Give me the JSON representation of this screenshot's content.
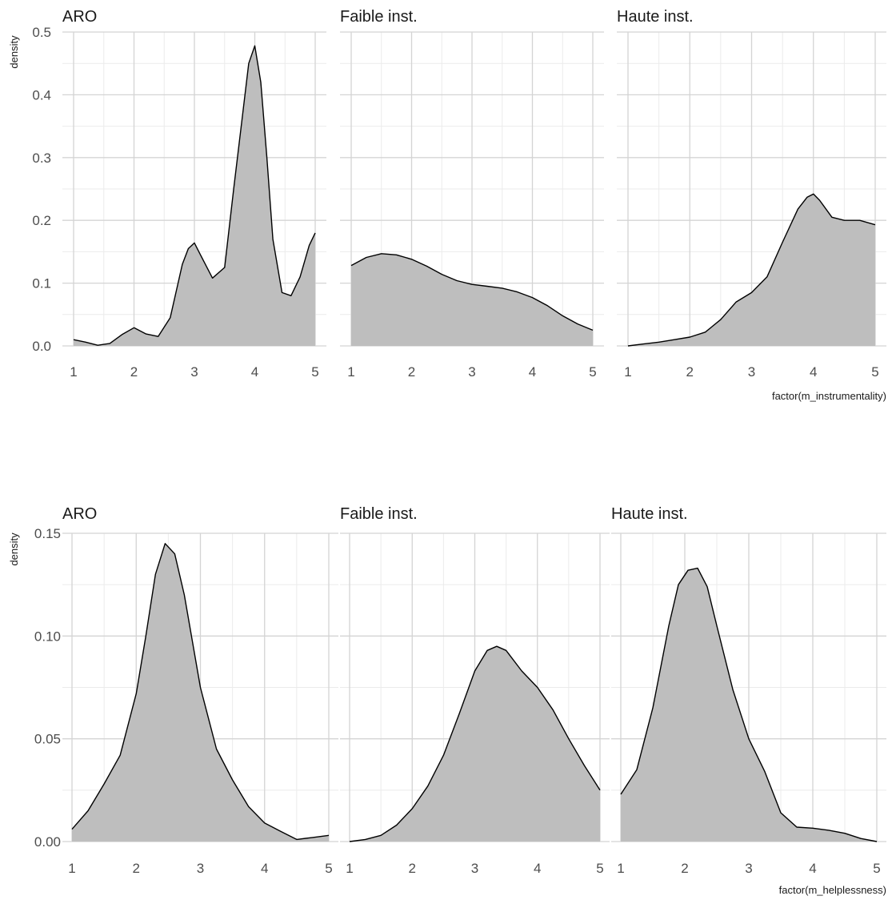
{
  "chart_data": [
    {
      "type": "area",
      "ylabel": "density",
      "xlabel": "factor(m_instrumentality)",
      "xlim": [
        1,
        5
      ],
      "ylim": [
        0,
        0.5
      ],
      "xticks": [
        "1",
        "2",
        "3",
        "4",
        "5"
      ],
      "yticks": [
        "0.0",
        "0.1",
        "0.2",
        "0.3",
        "0.4",
        "0.5"
      ],
      "fill_color": "#bebebe",
      "line_color": "#000000",
      "grid": true,
      "panels": [
        {
          "title": "ARO",
          "x": [
            1.0,
            1.2,
            1.4,
            1.6,
            1.8,
            2.0,
            2.2,
            2.4,
            2.6,
            2.8,
            2.9,
            3.0,
            3.1,
            3.3,
            3.5,
            3.65,
            3.8,
            3.9,
            4.0,
            4.1,
            4.2,
            4.3,
            4.45,
            4.6,
            4.75,
            4.9,
            5.0
          ],
          "y": [
            0.01,
            0.006,
            0.001,
            0.004,
            0.018,
            0.029,
            0.019,
            0.015,
            0.045,
            0.13,
            0.155,
            0.164,
            0.145,
            0.108,
            0.125,
            0.25,
            0.37,
            0.45,
            0.478,
            0.42,
            0.3,
            0.17,
            0.085,
            0.08,
            0.11,
            0.16,
            0.18
          ]
        },
        {
          "title": "Faible inst.",
          "x": [
            1.0,
            1.25,
            1.5,
            1.75,
            2.0,
            2.25,
            2.5,
            2.75,
            3.0,
            3.25,
            3.5,
            3.75,
            4.0,
            4.25,
            4.5,
            4.75,
            5.0
          ],
          "y": [
            0.128,
            0.141,
            0.147,
            0.145,
            0.138,
            0.127,
            0.114,
            0.104,
            0.098,
            0.095,
            0.092,
            0.086,
            0.077,
            0.064,
            0.048,
            0.035,
            0.025
          ]
        },
        {
          "title": "Haute inst.",
          "x": [
            1.0,
            1.25,
            1.5,
            1.75,
            2.0,
            2.25,
            2.5,
            2.75,
            3.0,
            3.25,
            3.5,
            3.75,
            3.9,
            4.0,
            4.1,
            4.3,
            4.5,
            4.75,
            5.0
          ],
          "y": [
            0.0,
            0.003,
            0.006,
            0.01,
            0.014,
            0.022,
            0.042,
            0.07,
            0.085,
            0.11,
            0.165,
            0.218,
            0.237,
            0.242,
            0.232,
            0.205,
            0.2,
            0.2,
            0.193
          ]
        }
      ]
    },
    {
      "type": "area",
      "ylabel": "density",
      "xlabel": "factor(m_helplessness)",
      "xlim": [
        1,
        5
      ],
      "ylim": [
        0,
        0.15
      ],
      "xticks": [
        "1",
        "2",
        "3",
        "4",
        "5"
      ],
      "yticks": [
        "0.00",
        "0.05",
        "0.10",
        "0.15"
      ],
      "fill_color": "#bebebe",
      "line_color": "#000000",
      "grid": true,
      "panels": [
        {
          "title": "ARO",
          "x": [
            1.0,
            1.25,
            1.5,
            1.75,
            2.0,
            2.15,
            2.3,
            2.45,
            2.6,
            2.75,
            3.0,
            3.25,
            3.5,
            3.75,
            4.0,
            4.25,
            4.5,
            4.75,
            5.0
          ],
          "y": [
            0.006,
            0.015,
            0.028,
            0.042,
            0.072,
            0.1,
            0.13,
            0.145,
            0.14,
            0.12,
            0.075,
            0.045,
            0.03,
            0.017,
            0.009,
            0.005,
            0.001,
            0.002,
            0.003
          ]
        },
        {
          "title": "Faible inst.",
          "x": [
            1.0,
            1.25,
            1.5,
            1.75,
            2.0,
            2.25,
            2.5,
            2.75,
            3.0,
            3.2,
            3.35,
            3.5,
            3.75,
            4.0,
            4.25,
            4.5,
            4.75,
            5.0
          ],
          "y": [
            0.0,
            0.001,
            0.003,
            0.008,
            0.016,
            0.027,
            0.042,
            0.062,
            0.083,
            0.093,
            0.095,
            0.093,
            0.083,
            0.075,
            0.064,
            0.05,
            0.037,
            0.025
          ]
        },
        {
          "title": "Haute inst.",
          "x": [
            1.0,
            1.25,
            1.5,
            1.75,
            1.9,
            2.05,
            2.2,
            2.35,
            2.5,
            2.75,
            3.0,
            3.25,
            3.5,
            3.75,
            4.0,
            4.25,
            4.5,
            4.75,
            5.0
          ],
          "y": [
            0.023,
            0.035,
            0.065,
            0.105,
            0.125,
            0.132,
            0.133,
            0.124,
            0.105,
            0.074,
            0.05,
            0.034,
            0.014,
            0.007,
            0.0065,
            0.0055,
            0.004,
            0.0015,
            0.0
          ]
        }
      ]
    }
  ]
}
